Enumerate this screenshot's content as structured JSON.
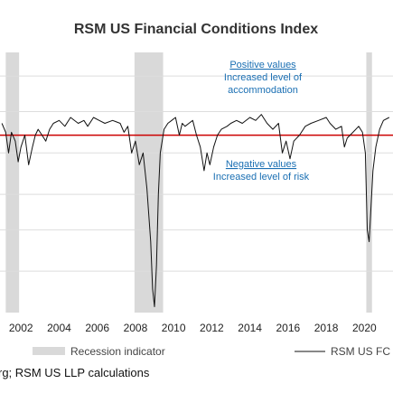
{
  "chart_data": {
    "type": "line",
    "title": "RSM US Financial Conditions Index",
    "x_ticks": [
      "2002",
      "2004",
      "2006",
      "2008",
      "2010",
      "2012",
      "2014",
      "2016",
      "2018",
      "2020"
    ],
    "xlim": [
      2000.9,
      2021.5
    ],
    "ylim": [
      -3.0,
      1.4
    ],
    "zero_line": 0,
    "grid": "horizontal",
    "grid_lines": [
      1.0,
      0.4,
      -0.3,
      -1.0,
      -1.6,
      -2.3
    ],
    "colors": {
      "series": "#111111",
      "zero_line": "#cc0000",
      "recession": "#d9d9d9",
      "grid": "#dddddd",
      "annotation": "#1a6fb3"
    },
    "recessions": [
      {
        "start": 2001.2,
        "end": 2001.9
      },
      {
        "start": 2007.95,
        "end": 2009.45
      },
      {
        "start": 2020.1,
        "end": 2020.4
      }
    ],
    "series": [
      {
        "name": "RSM US FCI",
        "x": [
          2001.0,
          2001.2,
          2001.35,
          2001.5,
          2001.7,
          2001.85,
          2002.0,
          2002.2,
          2002.4,
          2002.6,
          2002.75,
          2002.9,
          2003.1,
          2003.3,
          2003.5,
          2003.7,
          2004.0,
          2004.3,
          2004.6,
          2005.0,
          2005.3,
          2005.5,
          2005.8,
          2006.1,
          2006.4,
          2006.8,
          2007.2,
          2007.4,
          2007.6,
          2007.8,
          2008.0,
          2008.2,
          2008.4,
          2008.6,
          2008.8,
          2008.9,
          2009.0,
          2009.1,
          2009.2,
          2009.3,
          2009.5,
          2009.7,
          2009.9,
          2010.1,
          2010.3,
          2010.45,
          2010.6,
          2010.8,
          2011.0,
          2011.2,
          2011.4,
          2011.6,
          2011.75,
          2011.9,
          2012.1,
          2012.3,
          2012.5,
          2012.8,
          2013.0,
          2013.3,
          2013.6,
          2014.0,
          2014.3,
          2014.6,
          2014.9,
          2015.2,
          2015.5,
          2015.7,
          2015.9,
          2016.1,
          2016.3,
          2016.6,
          2016.9,
          2017.2,
          2017.6,
          2018.0,
          2018.2,
          2018.5,
          2018.8,
          2018.95,
          2019.1,
          2019.4,
          2019.7,
          2019.9,
          2020.05,
          2020.15,
          2020.25,
          2020.35,
          2020.45,
          2020.6,
          2020.8,
          2021.0,
          2021.3
        ],
        "values": [
          0.2,
          0.05,
          -0.3,
          0.05,
          -0.1,
          -0.45,
          -0.2,
          0.0,
          -0.5,
          -0.2,
          0.0,
          0.1,
          0.0,
          -0.1,
          0.1,
          0.2,
          0.25,
          0.15,
          0.3,
          0.2,
          0.25,
          0.15,
          0.3,
          0.25,
          0.2,
          0.25,
          0.2,
          0.05,
          0.15,
          -0.3,
          -0.1,
          -0.5,
          -0.3,
          -0.9,
          -1.8,
          -2.6,
          -2.9,
          -2.2,
          -1.0,
          -0.3,
          0.1,
          0.2,
          0.25,
          0.3,
          0.0,
          0.2,
          0.15,
          0.2,
          0.25,
          0.0,
          -0.2,
          -0.6,
          -0.3,
          -0.5,
          -0.2,
          0.0,
          0.1,
          0.15,
          0.2,
          0.25,
          0.2,
          0.3,
          0.25,
          0.35,
          0.2,
          0.1,
          0.2,
          -0.3,
          -0.1,
          -0.4,
          -0.1,
          0.0,
          0.15,
          0.2,
          0.25,
          0.3,
          0.2,
          0.1,
          0.15,
          -0.2,
          -0.05,
          0.05,
          0.15,
          0.05,
          -0.3,
          -1.6,
          -1.8,
          -1.2,
          -0.6,
          -0.2,
          0.1,
          0.25,
          0.3
        ]
      }
    ],
    "annotations": {
      "positive_head": "Positive values",
      "positive_line1": "Increased level of",
      "positive_line2": "accommodation",
      "negative_head": "Negative values",
      "negative_line1": "Increased level of risk"
    },
    "legend": {
      "recession_label": "Recession indicator",
      "series_label": "RSM US FC"
    },
    "source": "rg; RSM US LLP calculations"
  }
}
